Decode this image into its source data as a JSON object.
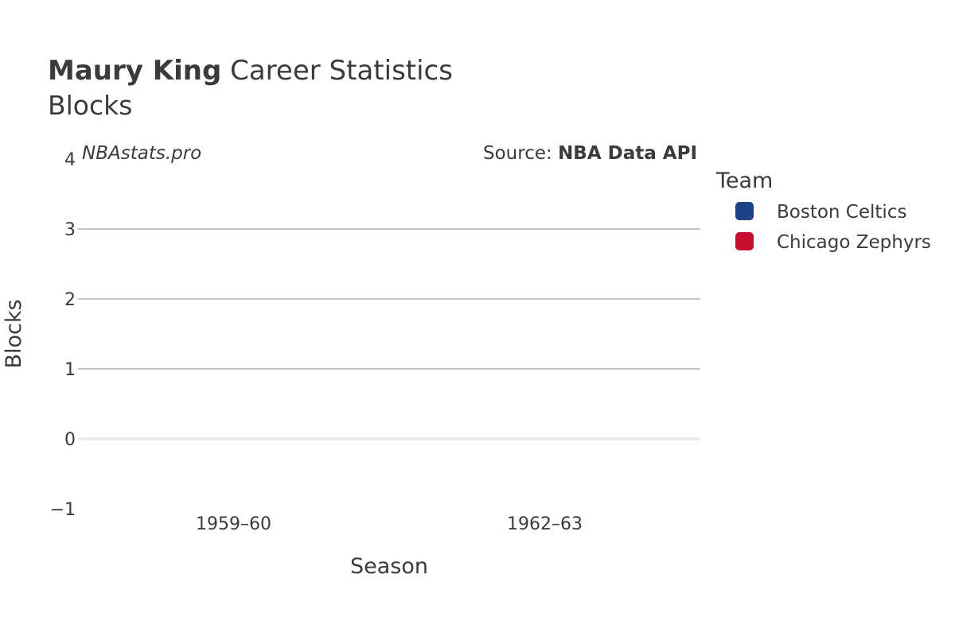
{
  "chart_data": {
    "type": "bar",
    "title_bold": "Maury King",
    "title_rest": "Career Statistics",
    "subtitle": "Blocks",
    "watermark": "NBAstats.pro",
    "source_prefix": "Source: ",
    "source_name": "NBA Data API",
    "xlabel": "Season",
    "ylabel": "Blocks",
    "categories": [
      "1959–60",
      "1962–63"
    ],
    "ylim": [
      -1,
      4
    ],
    "yticks": [
      -1,
      0,
      1,
      2,
      3,
      4
    ],
    "ytick_labels": [
      "−1",
      "0",
      "1",
      "2",
      "3",
      "4"
    ],
    "grid": true,
    "legend_title": "Team",
    "legend_position": "right",
    "series": [
      {
        "name": "Boston Celtics",
        "color": "#1d428a",
        "values": [
          0,
          null
        ]
      },
      {
        "name": "Chicago Zephyrs",
        "color": "#c8102e",
        "values": [
          null,
          0
        ]
      }
    ]
  }
}
